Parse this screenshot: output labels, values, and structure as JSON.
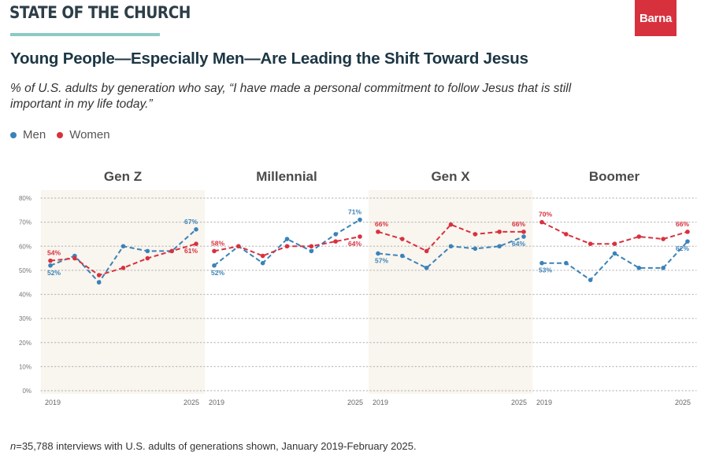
{
  "header": {
    "brand": "STATE OF THE CHURCH",
    "logo_text": "Barna",
    "title": "Young People—Especially Men—Are Leading the Shift Toward Jesus",
    "subtitle": "% of U.S. adults by generation who say, “I have made a personal commitment to follow Jesus that is still important in my life today.”"
  },
  "legend": {
    "men": "Men",
    "women": "Women"
  },
  "colors": {
    "men": "#3b82b8",
    "women": "#d8313e",
    "panel_shade": "#f9f5ef",
    "grid": "#bdbdbd",
    "brand_rule": "#8bcac6"
  },
  "footnote": {
    "n_label": "n",
    "text": "=35,788 interviews with U.S. adults of generations shown, January 2019-February 2025."
  },
  "chart_data": {
    "type": "line",
    "y_axis": {
      "min": 0,
      "max": 80,
      "ticks": [
        0,
        10,
        20,
        30,
        40,
        50,
        60,
        70,
        80
      ],
      "tick_labels": [
        "0%",
        "10%",
        "20%",
        "30%",
        "40%",
        "50%",
        "60%",
        "70%",
        "80%"
      ],
      "grid": "dotted"
    },
    "x": [
      2019,
      2020,
      2021,
      2022,
      2023,
      2024,
      2025
    ],
    "x_tick_labels": [
      "2019",
      "2025"
    ],
    "panels": [
      {
        "title": "Gen Z",
        "shaded": true,
        "series": [
          {
            "name": "Men",
            "values": [
              52,
              56,
              45,
              60,
              58,
              58,
              67
            ],
            "start_label": "52%",
            "end_label": "67%"
          },
          {
            "name": "Women",
            "values": [
              54,
              55,
              48,
              51,
              55,
              58,
              61
            ],
            "start_label": "54%",
            "end_label": "61%"
          }
        ]
      },
      {
        "title": "Millennial",
        "shaded": false,
        "series": [
          {
            "name": "Men",
            "values": [
              52,
              60,
              53,
              63,
              58,
              65,
              71
            ],
            "start_label": "52%",
            "end_label": "71%"
          },
          {
            "name": "Women",
            "values": [
              58,
              60,
              56,
              60,
              60,
              62,
              64
            ],
            "start_label": "58%",
            "end_label": "64%"
          }
        ]
      },
      {
        "title": "Gen X",
        "shaded": true,
        "series": [
          {
            "name": "Men",
            "values": [
              57,
              56,
              51,
              60,
              59,
              60,
              64
            ],
            "start_label": "57%",
            "end_label": "64%"
          },
          {
            "name": "Women",
            "values": [
              66,
              63,
              58,
              69,
              65,
              66,
              66
            ],
            "start_label": "66%",
            "end_label": "66%"
          }
        ]
      },
      {
        "title": "Boomer",
        "shaded": false,
        "series": [
          {
            "name": "Men",
            "values": [
              53,
              53,
              46,
              57,
              51,
              51,
              62
            ],
            "start_label": "53%",
            "end_label": "62%"
          },
          {
            "name": "Women",
            "values": [
              70,
              65,
              61,
              61,
              64,
              63,
              66
            ],
            "start_label": "70%",
            "end_label": "66%"
          }
        ]
      }
    ]
  }
}
